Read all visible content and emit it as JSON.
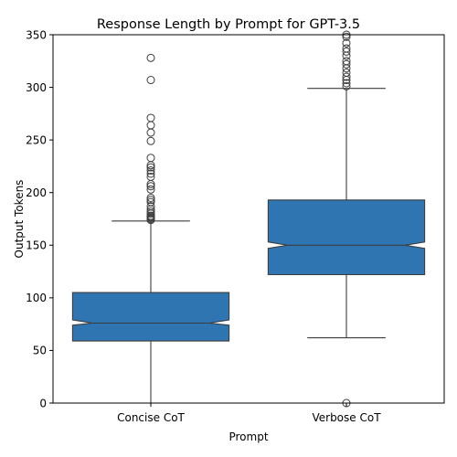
{
  "chart_data": {
    "type": "boxplot",
    "title": "Response Length by Prompt for GPT-3.5",
    "xlabel": "Prompt",
    "ylabel": "Output Tokens",
    "ylim": [
      0,
      350
    ],
    "yticks": [
      0,
      50,
      100,
      150,
      200,
      250,
      300,
      350
    ],
    "grid": false,
    "notched": true,
    "color": "#2f75b2",
    "categories": [
      "Concise CoT",
      "Verbose CoT"
    ],
    "boxes": [
      {
        "category": "Concise CoT",
        "whisker_low": 0,
        "q1": 59,
        "median": 76,
        "q3": 105,
        "whisker_high": 173,
        "notch_low": 74,
        "notch_high": 79,
        "outliers": [
          174,
          175,
          176,
          177,
          178,
          180,
          182,
          184,
          187,
          191,
          193,
          195,
          203,
          206,
          208,
          215,
          218,
          221,
          224,
          226,
          233,
          249,
          257,
          264,
          271,
          307,
          328
        ]
      },
      {
        "category": "Verbose CoT",
        "whisker_low": 62,
        "q1": 122,
        "median": 150,
        "q3": 193,
        "whisker_high": 299,
        "notch_low": 147,
        "notch_high": 153,
        "outliers": [
          0,
          301,
          304,
          307,
          310,
          314,
          318,
          322,
          325,
          330,
          334,
          337,
          342,
          348,
          350
        ]
      }
    ]
  }
}
